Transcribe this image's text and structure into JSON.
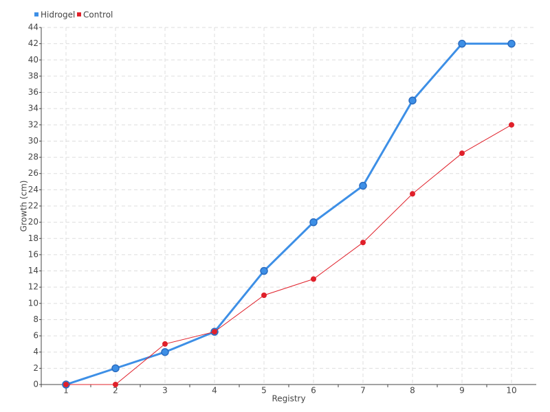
{
  "chart_data": {
    "type": "line",
    "x_label": "Registry",
    "y_label": "Growth (cm)",
    "categories": [
      "1",
      "2",
      "3",
      "4",
      "5",
      "6",
      "7",
      "8",
      "9",
      "10"
    ],
    "series": [
      {
        "name": "Hidrogel",
        "color": "#3d8fe6",
        "values": [
          0,
          2,
          4,
          6.5,
          14,
          20,
          24.5,
          35,
          42,
          42
        ]
      },
      {
        "name": "Control",
        "color": "#e0202a",
        "values": [
          0,
          0,
          5,
          6.5,
          11,
          13,
          17.5,
          23.5,
          28.5,
          32
        ]
      }
    ],
    "ylim": [
      0,
      44
    ],
    "yticks": [
      0,
      2,
      4,
      6,
      8,
      10,
      12,
      14,
      16,
      18,
      20,
      22,
      24,
      26,
      28,
      30,
      32,
      34,
      36,
      38,
      40,
      42,
      44
    ],
    "grid": true,
    "legend": "top-left"
  }
}
